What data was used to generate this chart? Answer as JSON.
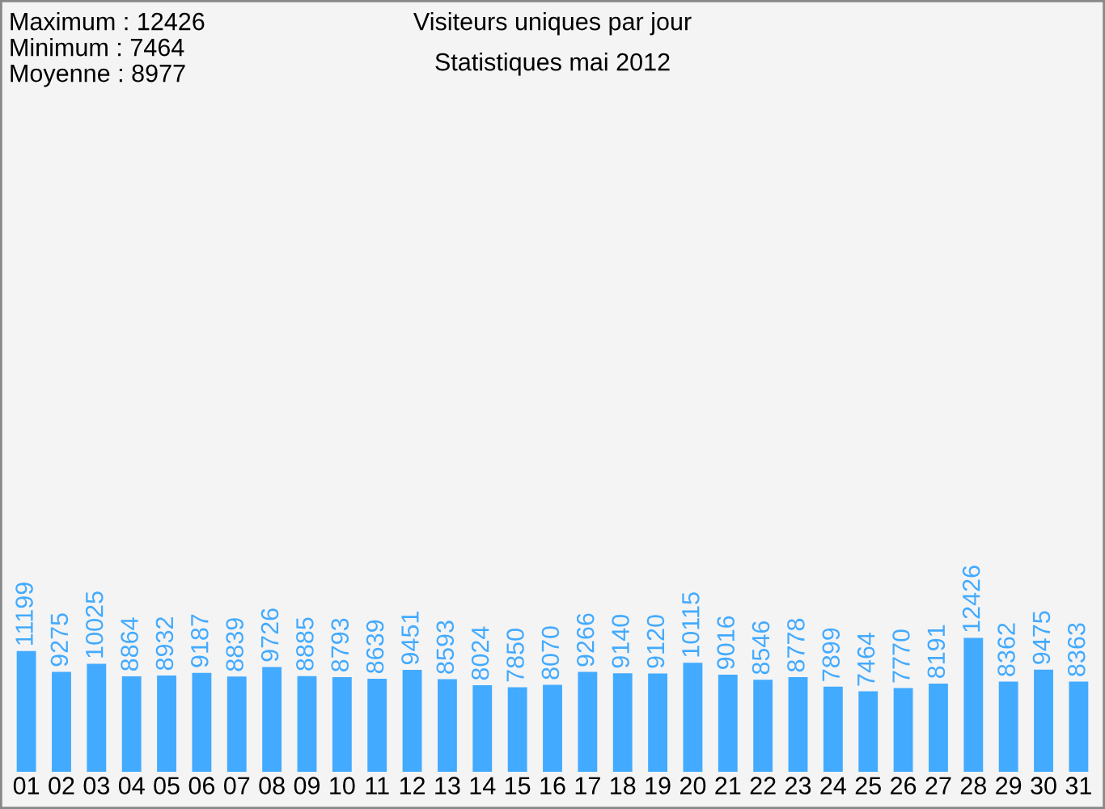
{
  "chart_data": {
    "type": "bar",
    "title": "Visiteurs uniques par jour",
    "subtitle": "Statistiques mai 2012",
    "annotations": [
      "Maximum : 12426",
      "Minimum : 7464",
      "Moyenne : 8977"
    ],
    "categories": [
      "01",
      "02",
      "03",
      "04",
      "05",
      "06",
      "07",
      "08",
      "09",
      "10",
      "11",
      "12",
      "13",
      "14",
      "15",
      "16",
      "17",
      "18",
      "19",
      "20",
      "21",
      "22",
      "23",
      "24",
      "25",
      "26",
      "27",
      "28",
      "29",
      "30",
      "31"
    ],
    "values": [
      11199,
      9275,
      10025,
      8864,
      8932,
      9187,
      8839,
      9726,
      8885,
      8793,
      8639,
      9451,
      8593,
      8024,
      7850,
      8070,
      9266,
      9140,
      9120,
      10115,
      9016,
      8546,
      8778,
      7899,
      7464,
      7770,
      8191,
      12426,
      8362,
      9475,
      8363
    ],
    "color": "#42aaff",
    "data_labels": true,
    "grid": false,
    "legend": false
  }
}
